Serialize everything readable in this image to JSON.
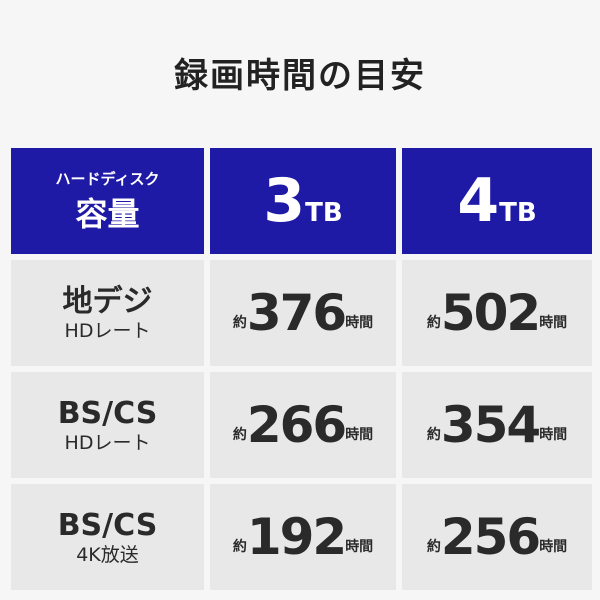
{
  "title": "録画時間の目安",
  "header": {
    "label_small": "ハードディスク",
    "label_big": "容量",
    "columns": [
      {
        "num": "3",
        "unit": "TB"
      },
      {
        "num": "4",
        "unit": "TB"
      }
    ]
  },
  "rows": [
    {
      "label1": "地デジ",
      "label2": "HDレート",
      "values": [
        "376",
        "502"
      ]
    },
    {
      "label1": "BS/CS",
      "label2": "HDレート",
      "values": [
        "266",
        "354"
      ]
    },
    {
      "label1": "BS/CS",
      "label2": "4K放送",
      "values": [
        "192",
        "256"
      ]
    }
  ],
  "prefix": "約",
  "suffix": "時間",
  "colors": {
    "header": "#1f1aa6",
    "cell": "#e8e8e8"
  }
}
